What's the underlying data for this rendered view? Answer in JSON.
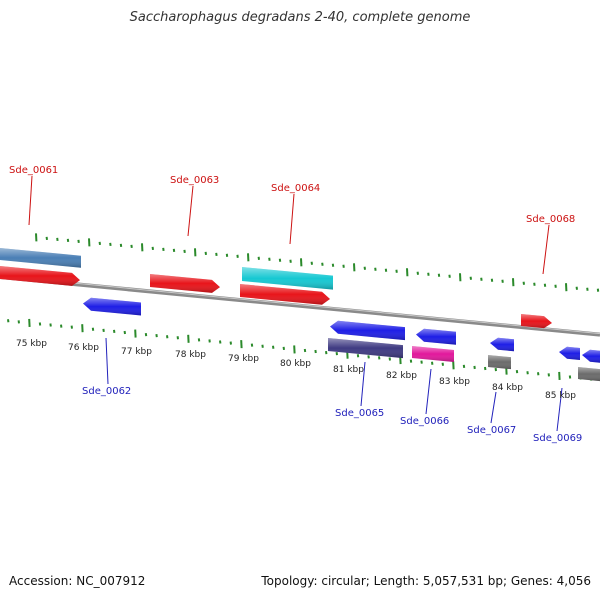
{
  "title": "Saccharophagus degradans 2-40, complete genome",
  "footer": {
    "accession": "Accession: NC_007912",
    "summary": "Topology: circular; Length: 5,057,531 bp; Genes: 4,056"
  },
  "colors": {
    "forward_gene": "#e8141a",
    "reverse_gene": "#1e1ee6",
    "steel_gene": "#4a7fb5",
    "cyan_gene": "#16c8d2",
    "navy_gene": "#3f3a82",
    "magenta_gene": "#e2189c",
    "gray_gene": "#6b6b6b",
    "backbone": "#8a8a8a",
    "ticks": "#2b8a2b",
    "label_forward": "#cc1111",
    "label_reverse": "#2222bb"
  },
  "scale": {
    "labels": [
      "75 kbp",
      "76 kbp",
      "77 kbp",
      "78 kbp",
      "79 kbp",
      "80 kbp",
      "81 kbp",
      "82 kbp",
      "83 kbp",
      "84 kbp",
      "85 kbp"
    ]
  },
  "gene_labels": [
    {
      "text": "Sde_0061",
      "strand": "forward"
    },
    {
      "text": "Sde_0063",
      "strand": "forward"
    },
    {
      "text": "Sde_0064",
      "strand": "forward"
    },
    {
      "text": "Sde_0068",
      "strand": "forward"
    },
    {
      "text": "Sde_0062",
      "strand": "reverse"
    },
    {
      "text": "Sde_0065",
      "strand": "reverse"
    },
    {
      "text": "Sde_0066",
      "strand": "reverse"
    },
    {
      "text": "Sde_0067",
      "strand": "reverse"
    },
    {
      "text": "Sde_0069",
      "strand": "reverse"
    }
  ]
}
